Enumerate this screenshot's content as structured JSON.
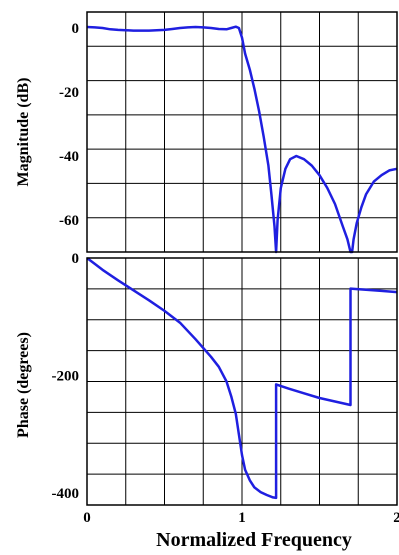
{
  "chart_data": [
    {
      "type": "line",
      "ylabel": "Magnitude (dB)",
      "xlim": [
        0,
        2
      ],
      "ylim": [
        -70,
        5
      ],
      "yticks": [
        0,
        -20,
        -40,
        -60
      ],
      "grid": true,
      "line_color": "#1f1fe0",
      "series": [
        {
          "x": [
            0,
            0.05,
            0.1,
            0.15,
            0.2,
            0.25,
            0.3,
            0.35,
            0.4,
            0.45,
            0.5,
            0.55,
            0.6,
            0.65,
            0.7,
            0.75,
            0.8,
            0.85,
            0.9,
            0.93,
            0.96,
            0.98,
            1.0,
            1.02,
            1.05,
            1.08,
            1.11,
            1.14,
            1.17,
            1.19,
            1.21,
            1.22,
            1.23,
            1.25,
            1.28,
            1.31,
            1.35,
            1.4,
            1.45,
            1.5,
            1.55,
            1.6,
            1.65,
            1.68,
            1.7,
            1.71,
            1.72,
            1.74,
            1.77,
            1.8,
            1.85,
            1.9,
            1.95,
            2.0
          ],
          "y": [
            0.3,
            0.2,
            0,
            -0.4,
            -0.6,
            -0.7,
            -0.8,
            -0.8,
            -0.8,
            -0.7,
            -0.6,
            -0.3,
            0,
            0.2,
            0.3,
            0.2,
            0,
            -0.3,
            -0.4,
            0,
            0.4,
            0,
            -3,
            -8,
            -13,
            -19,
            -26,
            -34,
            -43,
            -52,
            -62,
            -70,
            -60,
            -50,
            -44,
            -41,
            -40,
            -41,
            -43,
            -46,
            -50,
            -55,
            -62,
            -66,
            -70,
            -70,
            -66,
            -61,
            -56,
            -52,
            -48,
            -46,
            -44.5,
            -44
          ]
        }
      ]
    },
    {
      "type": "line",
      "xlabel": "Normalized Frequency",
      "ylabel": "Phase (degrees)",
      "xlim": [
        0,
        2
      ],
      "ylim": [
        -420,
        0
      ],
      "yticks": [
        0,
        -200,
        -400
      ],
      "xticks": [
        0,
        1,
        2
      ],
      "grid": true,
      "line_color": "#1f1fe0",
      "series": [
        {
          "x": [
            0,
            0.05,
            0.1,
            0.2,
            0.3,
            0.4,
            0.5,
            0.6,
            0.7,
            0.8,
            0.85,
            0.9,
            0.93,
            0.96,
            0.98,
            1.0,
            1.02,
            1.05,
            1.08,
            1.12,
            1.16,
            1.2,
            1.22,
            1.22,
            1.3,
            1.4,
            1.5,
            1.6,
            1.7,
            1.7,
            1.8,
            1.9,
            2.0
          ],
          "y": [
            0,
            -10,
            -20,
            -38,
            -55,
            -72,
            -90,
            -110,
            -138,
            -168,
            -185,
            -210,
            -235,
            -265,
            -300,
            -335,
            -360,
            -378,
            -390,
            -398,
            -403,
            -407,
            -408,
            -215,
            -222,
            -230,
            -238,
            -244,
            -250,
            -52,
            -54,
            -56,
            -58
          ]
        }
      ]
    }
  ]
}
